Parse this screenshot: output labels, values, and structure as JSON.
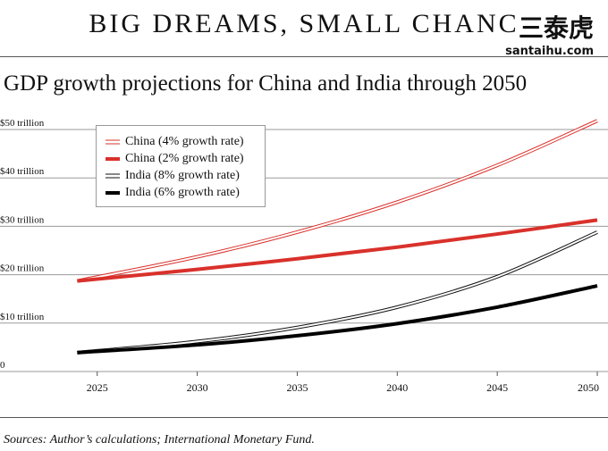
{
  "headline": "BIG DREAMS, SMALL CHANC",
  "watermark": {
    "logo": "三泰虎",
    "url": "santaihu.com"
  },
  "subtitle": "GDP growth projections for China and India through 2050",
  "source": "Sources: Author’s calculations; International Monetary Fund.",
  "chart_data": {
    "type": "line",
    "title": "GDP growth projections for China and India through 2050",
    "xlabel": "",
    "ylabel": "",
    "xlim": [
      2023,
      2050
    ],
    "ylim": [
      0,
      50
    ],
    "x_ticks": [
      2025,
      2030,
      2035,
      2040,
      2045,
      2050
    ],
    "y_ticks": [
      {
        "value": 0,
        "label": "0"
      },
      {
        "value": 10,
        "label": "$10 trillion"
      },
      {
        "value": 20,
        "label": "$20 trillion"
      },
      {
        "value": 30,
        "label": "$30 trillion"
      },
      {
        "value": 40,
        "label": "$40 trillion"
      },
      {
        "value": 50,
        "label": "$50 trillion"
      }
    ],
    "grid": "horizontal",
    "legend_position": "top-left",
    "series": [
      {
        "name": "China (4% growth rate)",
        "color": "#d9312b",
        "style": "double",
        "x": [
          2024,
          2030,
          2035,
          2040,
          2045,
          2050
        ],
        "values": [
          18.7,
          23.7,
          28.8,
          35.0,
          42.6,
          51.8
        ]
      },
      {
        "name": "China (2% growth rate)",
        "color": "#d9312b",
        "style": "thick",
        "x": [
          2024,
          2030,
          2035,
          2040,
          2045,
          2050
        ],
        "values": [
          18.7,
          21.1,
          23.3,
          25.7,
          28.4,
          31.3
        ]
      },
      {
        "name": "India (8% growth rate)",
        "color": "#111111",
        "style": "double",
        "x": [
          2024,
          2030,
          2035,
          2040,
          2045,
          2050
        ],
        "values": [
          3.9,
          6.2,
          9.1,
          13.3,
          19.6,
          28.8
        ]
      },
      {
        "name": "India (6% growth rate)",
        "color": "#000000",
        "style": "thick",
        "x": [
          2024,
          2030,
          2035,
          2040,
          2045,
          2050
        ],
        "values": [
          3.9,
          5.5,
          7.4,
          9.9,
          13.3,
          17.7
        ]
      }
    ]
  }
}
